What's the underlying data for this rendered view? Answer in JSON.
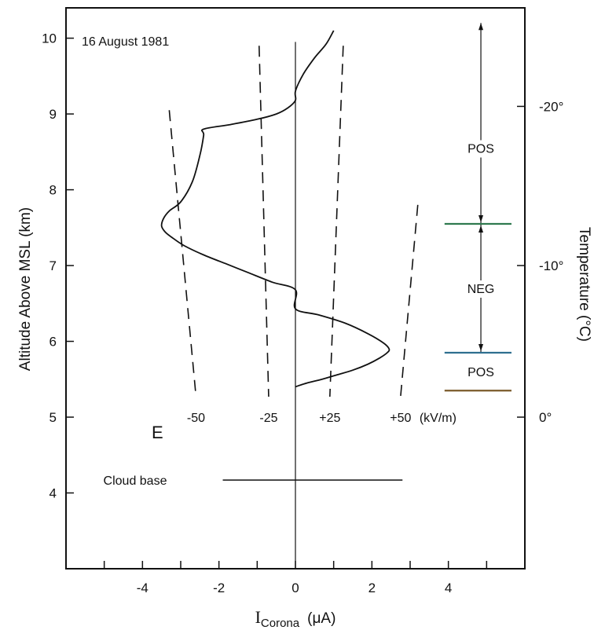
{
  "chart_data": {
    "type": "line",
    "annotation_date": "16 August 1981",
    "xlabel_main": "I",
    "xlabel_sub": "Corona",
    "xlabel_unit": "(μA)",
    "ylabel": "Altitude Above MSL (km)",
    "y2label": "Temperature (°C)",
    "xlim": [
      -6,
      6
    ],
    "ylim": [
      3.0,
      10.4
    ],
    "x_ticks": [
      -4,
      -2,
      0,
      2,
      4
    ],
    "x_tick_labels": [
      "-4",
      "-2",
      "0",
      "2",
      "4"
    ],
    "y_ticks": [
      4,
      5,
      6,
      7,
      8,
      9,
      10
    ],
    "y_tick_labels": [
      "4",
      "5",
      "6",
      "7",
      "8",
      "9",
      "10"
    ],
    "temperature_ticks": [
      {
        "altitude": 5.0,
        "label": "0°"
      },
      {
        "altitude": 7.0,
        "label": "-10°"
      },
      {
        "altitude": 9.1,
        "label": "-20°"
      }
    ],
    "corona_current": {
      "x": [
        0.0,
        0.3,
        0.7,
        1.1,
        1.5,
        1.9,
        2.2,
        2.4,
        2.45,
        2.3,
        1.9,
        1.3,
        0.6,
        0.0,
        0.0,
        -0.6,
        -1.2,
        -1.8,
        -2.4,
        -2.9,
        -3.2,
        -3.4,
        -3.5,
        -3.45,
        -3.3,
        -3.0,
        -2.7,
        -2.5,
        -2.4,
        -2.4,
        -1.7,
        -1.0,
        -0.5,
        -0.2,
        0.0,
        0.0,
        0.2,
        0.5,
        0.8,
        1.0
      ],
      "y": [
        5.4,
        5.45,
        5.5,
        5.56,
        5.62,
        5.7,
        5.78,
        5.85,
        5.9,
        5.98,
        6.1,
        6.24,
        6.35,
        6.43,
        6.68,
        6.78,
        6.9,
        7.02,
        7.14,
        7.26,
        7.36,
        7.44,
        7.52,
        7.62,
        7.72,
        7.84,
        8.1,
        8.45,
        8.72,
        8.8,
        8.86,
        8.93,
        9.0,
        9.08,
        9.18,
        9.3,
        9.52,
        9.74,
        9.92,
        10.1
      ]
    },
    "efield_series": [
      {
        "name": "-50",
        "x": [
          -3.3,
          -2.6
        ],
        "y": [
          9.05,
          5.27
        ]
      },
      {
        "name": "-25",
        "x": [
          -0.95,
          -0.7
        ],
        "y": [
          9.9,
          5.27
        ]
      },
      {
        "name": "+25",
        "x": [
          1.25,
          0.9
        ],
        "y": [
          9.9,
          5.27
        ]
      },
      {
        "name": "+50",
        "x": [
          3.2,
          2.75
        ],
        "y": [
          7.8,
          5.27
        ]
      }
    ],
    "efield_axis_letter": "E",
    "efield_unit": "(kV/m)",
    "cloud_base": {
      "label": "Cloud base",
      "altitude": 4.17,
      "x_start": -1.9,
      "x_end": 2.8
    },
    "charge_regions": [
      {
        "label": "POS",
        "y_from": 7.55,
        "y_to": 10.2
      },
      {
        "label": "NEG",
        "y_from": 5.85,
        "y_to": 7.55
      },
      {
        "label": "POS",
        "y_from": 5.35,
        "y_to": 5.85
      }
    ],
    "region_boundaries": [
      7.55,
      5.85,
      5.35
    ],
    "boundary_colors": [
      "#2f7a4f",
      "#2f6f8f",
      "#7a5a2a"
    ],
    "grid": false,
    "legend": "none"
  }
}
